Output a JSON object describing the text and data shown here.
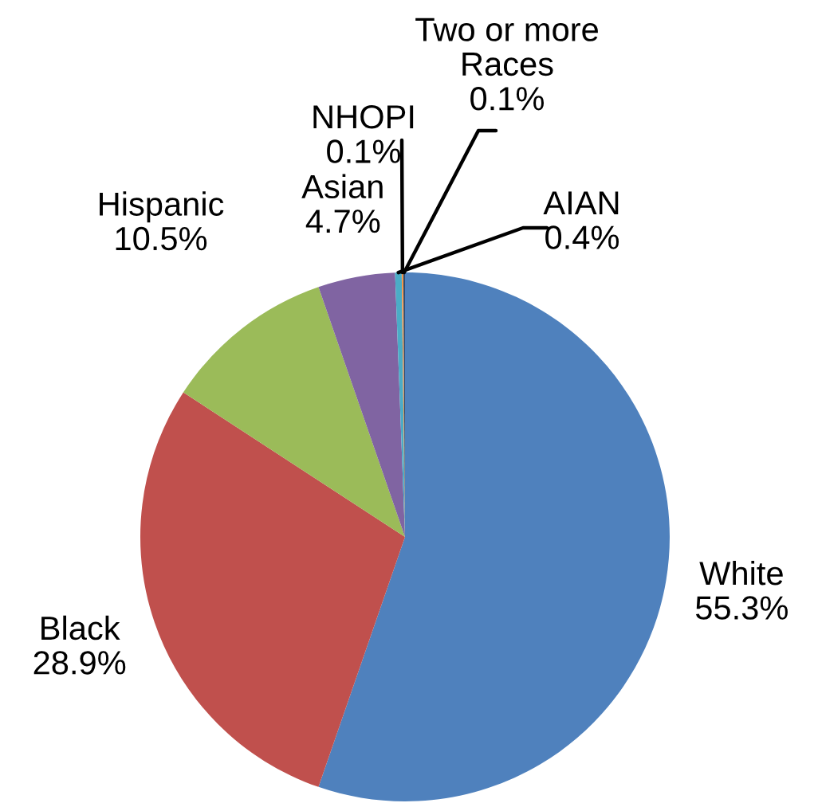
{
  "chart_data": {
    "type": "pie",
    "categories": [
      "White",
      "Black",
      "Hispanic",
      "Asian",
      "AIAN",
      "NHOPI",
      "Two or more Races"
    ],
    "values": [
      55.3,
      28.9,
      10.5,
      4.7,
      0.4,
      0.1,
      0.1
    ],
    "colors": [
      "#4f81bd",
      "#c0504d",
      "#9bbb59",
      "#8064a2",
      "#4bacc6",
      "#f79646",
      "#2c4d75"
    ],
    "value_labels": [
      "55.3%",
      "28.9%",
      "10.5%",
      "4.7%",
      "0.4%",
      "0.1%",
      "0.1%"
    ]
  }
}
